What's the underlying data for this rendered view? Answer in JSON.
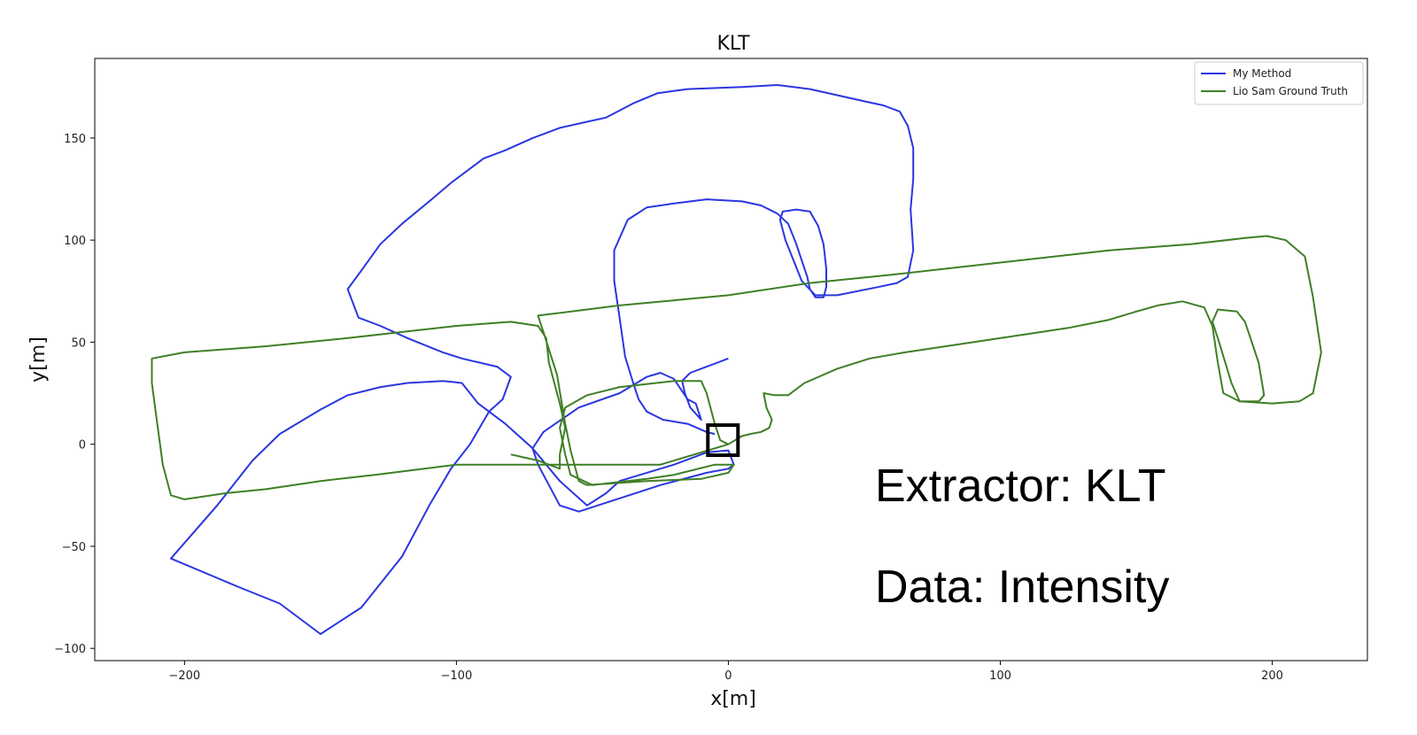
{
  "chart_data": {
    "type": "line",
    "title": "KLT",
    "xlabel": "x[m]",
    "ylabel": "y[m]",
    "xlim": [
      -233,
      235
    ],
    "ylim": [
      -106,
      189
    ],
    "xticks": [
      -200,
      -100,
      0,
      100,
      200
    ],
    "xtick_labels": [
      "−200",
      "−100",
      "0",
      "100",
      "200"
    ],
    "yticks": [
      -100,
      -50,
      0,
      50,
      100,
      150
    ],
    "ytick_labels": [
      "−100",
      "−50",
      "0",
      "50",
      "100",
      "150"
    ],
    "grid": false,
    "legend_position": "top-right",
    "annotations": [
      "Extractor: KLT",
      "Data: Intensity"
    ],
    "start_marker": {
      "x": -2,
      "y": 2,
      "shape": "square"
    },
    "series": [
      {
        "name": "My Method",
        "color": "#2a36e0",
        "points": [
          [
            -5,
            5
          ],
          [
            -8,
            6
          ],
          [
            -15,
            10
          ],
          [
            -24,
            12
          ],
          [
            -30,
            16
          ],
          [
            -33,
            22
          ],
          [
            -35,
            30
          ],
          [
            -38,
            43
          ],
          [
            -40,
            62
          ],
          [
            -42,
            80
          ],
          [
            -42,
            95
          ],
          [
            -37,
            110
          ],
          [
            -30,
            116
          ],
          [
            -20,
            118
          ],
          [
            -8,
            120
          ],
          [
            5,
            119
          ],
          [
            12,
            117
          ],
          [
            18,
            113
          ],
          [
            22,
            108
          ],
          [
            25,
            98
          ],
          [
            27,
            90
          ],
          [
            29,
            82
          ],
          [
            30,
            76
          ],
          [
            32,
            72
          ],
          [
            35,
            72
          ],
          [
            36,
            77
          ],
          [
            36,
            86
          ],
          [
            35,
            98
          ],
          [
            33,
            107
          ],
          [
            30,
            114
          ],
          [
            25,
            115
          ],
          [
            20,
            114
          ],
          [
            19,
            110
          ],
          [
            21,
            100
          ],
          [
            24,
            90
          ],
          [
            27,
            80
          ],
          [
            32,
            73
          ],
          [
            40,
            73
          ],
          [
            55,
            77
          ],
          [
            62,
            79
          ],
          [
            66,
            82
          ],
          [
            68,
            95
          ],
          [
            67,
            115
          ],
          [
            68,
            130
          ],
          [
            68,
            145
          ],
          [
            66,
            156
          ],
          [
            63,
            163
          ],
          [
            57,
            166
          ],
          [
            50,
            168
          ],
          [
            40,
            171
          ],
          [
            30,
            174
          ],
          [
            18,
            176
          ],
          [
            5,
            175
          ],
          [
            -15,
            174
          ],
          [
            -26,
            172
          ],
          [
            -35,
            167
          ],
          [
            -45,
            160
          ],
          [
            -52,
            158
          ],
          [
            -62,
            155
          ],
          [
            -72,
            150
          ],
          [
            -82,
            144
          ],
          [
            -90,
            140
          ],
          [
            -102,
            128
          ],
          [
            -110,
            119
          ],
          [
            -120,
            108
          ],
          [
            -128,
            98
          ],
          [
            -135,
            85
          ],
          [
            -140,
            76
          ],
          [
            -136,
            62
          ],
          [
            -128,
            58
          ],
          [
            -118,
            52
          ],
          [
            -105,
            45
          ],
          [
            -98,
            42
          ],
          [
            -85,
            38
          ],
          [
            -80,
            33
          ],
          [
            -83,
            22
          ],
          [
            -88,
            16
          ],
          [
            -95,
            0
          ],
          [
            -102,
            -12
          ],
          [
            -110,
            -30
          ],
          [
            -120,
            -55
          ],
          [
            -135,
            -80
          ],
          [
            -150,
            -93
          ],
          [
            -165,
            -78
          ],
          [
            -180,
            -70
          ],
          [
            -205,
            -56
          ],
          [
            -188,
            -30
          ],
          [
            -175,
            -8
          ],
          [
            -165,
            5
          ],
          [
            -150,
            17
          ],
          [
            -140,
            24
          ],
          [
            -128,
            28
          ],
          [
            -118,
            30
          ],
          [
            -105,
            31
          ],
          [
            -98,
            30
          ],
          [
            -92,
            20
          ],
          [
            -82,
            10
          ],
          [
            -72,
            -2
          ],
          [
            -62,
            -18
          ],
          [
            -52,
            -30
          ],
          [
            -45,
            -24
          ],
          [
            -40,
            -18
          ],
          [
            -20,
            -10
          ],
          [
            -8,
            -4
          ],
          [
            0,
            -3
          ],
          [
            2,
            -10
          ],
          [
            0,
            -12
          ],
          [
            -8,
            -14
          ],
          [
            -25,
            -20
          ],
          [
            -55,
            -33
          ],
          [
            -62,
            -30
          ],
          [
            -70,
            -10
          ],
          [
            -72,
            -2
          ],
          [
            -68,
            6
          ],
          [
            -55,
            18
          ],
          [
            -40,
            25
          ],
          [
            -30,
            33
          ],
          [
            -25,
            35
          ],
          [
            -20,
            32
          ],
          [
            -15,
            22
          ],
          [
            -12,
            20
          ],
          [
            -10,
            12
          ],
          [
            -14,
            18
          ],
          [
            -16,
            25
          ],
          [
            -17,
            31
          ],
          [
            -14,
            35
          ],
          [
            -8,
            38
          ],
          [
            -4,
            40
          ],
          [
            0,
            42
          ]
        ]
      },
      {
        "name": "Lio Sam Ground Truth",
        "color": "#3f7f26",
        "points": [
          [
            0,
            0
          ],
          [
            5,
            4
          ],
          [
            8,
            5
          ],
          [
            12,
            6
          ],
          [
            15,
            8
          ],
          [
            16,
            12
          ],
          [
            14,
            18
          ],
          [
            13,
            25
          ],
          [
            17,
            24
          ],
          [
            22,
            24
          ],
          [
            28,
            30
          ],
          [
            40,
            37
          ],
          [
            52,
            42
          ],
          [
            65,
            45
          ],
          [
            80,
            48
          ],
          [
            95,
            51
          ],
          [
            110,
            54
          ],
          [
            125,
            57
          ],
          [
            140,
            61
          ],
          [
            150,
            65
          ],
          [
            158,
            68
          ],
          [
            167,
            70
          ],
          [
            175,
            67
          ],
          [
            178,
            58
          ],
          [
            180,
            40
          ],
          [
            182,
            25
          ],
          [
            188,
            21
          ],
          [
            195,
            21
          ],
          [
            197,
            24
          ],
          [
            195,
            40
          ],
          [
            190,
            60
          ],
          [
            187,
            65
          ],
          [
            180,
            66
          ],
          [
            178,
            60
          ],
          [
            180,
            52
          ],
          [
            185,
            30
          ],
          [
            188,
            21
          ],
          [
            200,
            20
          ],
          [
            210,
            21
          ],
          [
            215,
            25
          ],
          [
            218,
            45
          ],
          [
            215,
            72
          ],
          [
            212,
            92
          ],
          [
            205,
            100
          ],
          [
            198,
            102
          ],
          [
            190,
            101
          ],
          [
            170,
            98
          ],
          [
            140,
            95
          ],
          [
            100,
            89
          ],
          [
            60,
            83
          ],
          [
            30,
            79
          ],
          [
            0,
            73
          ],
          [
            -40,
            68
          ],
          [
            -70,
            63
          ],
          [
            -68,
            55
          ],
          [
            -63,
            34
          ],
          [
            -60,
            10
          ],
          [
            -58,
            -3
          ],
          [
            -55,
            -18
          ],
          [
            -52,
            -20
          ],
          [
            -30,
            -18
          ],
          [
            -10,
            -17
          ],
          [
            0,
            -14
          ],
          [
            2,
            -10
          ],
          [
            -5,
            -10
          ],
          [
            -20,
            -15
          ],
          [
            -30,
            -17
          ],
          [
            -50,
            -20
          ],
          [
            -58,
            -15
          ],
          [
            -60,
            -5
          ],
          [
            -62,
            8
          ],
          [
            -60,
            18
          ],
          [
            -52,
            24
          ],
          [
            -40,
            28
          ],
          [
            -20,
            31
          ],
          [
            -10,
            31
          ],
          [
            -8,
            25
          ],
          [
            -5,
            10
          ],
          [
            -3,
            2
          ],
          [
            0,
            0
          ],
          [
            -25,
            -10
          ],
          [
            -55,
            -10
          ],
          [
            -75,
            -10
          ],
          [
            -100,
            -10
          ],
          [
            -130,
            -15
          ],
          [
            -150,
            -18
          ],
          [
            -170,
            -22
          ],
          [
            -185,
            -24
          ],
          [
            -200,
            -27
          ],
          [
            -205,
            -25
          ],
          [
            -208,
            -10
          ],
          [
            -210,
            10
          ],
          [
            -212,
            30
          ],
          [
            -212,
            42
          ],
          [
            -200,
            45
          ],
          [
            -170,
            48
          ],
          [
            -140,
            52
          ],
          [
            -120,
            55
          ],
          [
            -100,
            58
          ],
          [
            -80,
            60
          ],
          [
            -70,
            58
          ],
          [
            -67,
            52
          ],
          [
            -66,
            40
          ],
          [
            -62,
            20
          ],
          [
            -60,
            8
          ],
          [
            -62,
            -5
          ],
          [
            -62,
            -12
          ],
          [
            -70,
            -8
          ],
          [
            -80,
            -5
          ]
        ]
      }
    ]
  }
}
